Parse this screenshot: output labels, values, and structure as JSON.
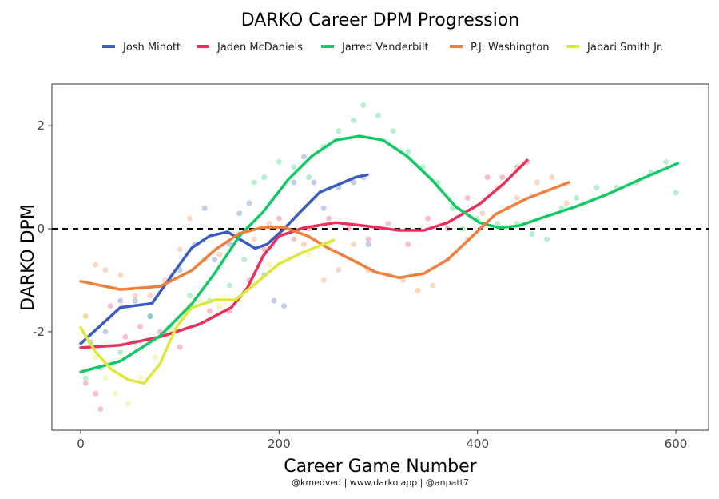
{
  "chart_data": {
    "type": "line",
    "title": "DARKO Career DPM Progression",
    "xlabel": "Career Game Number",
    "ylabel": "DARKO DPM",
    "caption": "@kmedved | www.darko.app | @anpatt7",
    "xlim": [
      -29,
      633
    ],
    "ylim": [
      -3.91,
      2.81
    ],
    "xticks": [
      0,
      200,
      400,
      600
    ],
    "yticks": [
      -2,
      0,
      2
    ],
    "reference_line": {
      "y": 0,
      "style": "dashed"
    },
    "legend_position": "top",
    "grid": false,
    "series": [
      {
        "name": "Josh Minott",
        "color": "#3b5bbf",
        "smooth": [
          [
            0,
            -2.23
          ],
          [
            40,
            -1.53
          ],
          [
            72,
            -1.45
          ],
          [
            92,
            -0.9
          ],
          [
            112,
            -0.37
          ],
          [
            130,
            -0.14
          ],
          [
            148,
            -0.06
          ],
          [
            160,
            -0.2
          ],
          [
            176,
            -0.38
          ],
          [
            188,
            -0.3
          ],
          [
            205,
            0
          ],
          [
            225,
            0.4
          ],
          [
            241,
            0.71
          ],
          [
            261,
            0.87
          ],
          [
            277,
            1.0
          ],
          [
            289,
            1.05
          ]
        ],
        "points": [
          [
            10,
            -2.2
          ],
          [
            25,
            -2.0
          ],
          [
            40,
            -1.4
          ],
          [
            55,
            -1.4
          ],
          [
            70,
            -1.7
          ],
          [
            90,
            -1.0
          ],
          [
            100,
            -0.8
          ],
          [
            115,
            -0.3
          ],
          [
            125,
            0.4
          ],
          [
            135,
            -0.6
          ],
          [
            150,
            -0.3
          ],
          [
            160,
            0.3
          ],
          [
            170,
            0.5
          ],
          [
            185,
            -0.9
          ],
          [
            195,
            -1.4
          ],
          [
            205,
            -1.5
          ],
          [
            215,
            0.9
          ],
          [
            225,
            1.4
          ],
          [
            235,
            0.9
          ],
          [
            245,
            0.4
          ],
          [
            260,
            0.8
          ],
          [
            275,
            0.9
          ],
          [
            285,
            1.0
          ],
          [
            290,
            -0.3
          ]
        ]
      },
      {
        "name": "Jaden McDaniels",
        "color": "#e8305a",
        "smooth": [
          [
            0,
            -2.31
          ],
          [
            40,
            -2.26
          ],
          [
            80,
            -2.1
          ],
          [
            120,
            -1.85
          ],
          [
            152,
            -1.53
          ],
          [
            168,
            -1.15
          ],
          [
            184,
            -0.53
          ],
          [
            200,
            -0.14
          ],
          [
            225,
            0.02
          ],
          [
            257,
            0.12
          ],
          [
            289,
            0.05
          ],
          [
            321,
            -0.03
          ],
          [
            346,
            -0.03
          ],
          [
            370,
            0.12
          ],
          [
            402,
            0.48
          ],
          [
            426,
            0.87
          ],
          [
            450,
            1.33
          ]
        ],
        "points": [
          [
            5,
            -3.0
          ],
          [
            15,
            -3.2
          ],
          [
            20,
            -3.5
          ],
          [
            30,
            -1.5
          ],
          [
            45,
            -2.1
          ],
          [
            60,
            -1.9
          ],
          [
            80,
            -2.0
          ],
          [
            100,
            -2.3
          ],
          [
            110,
            -1.5
          ],
          [
            130,
            -1.6
          ],
          [
            150,
            -1.6
          ],
          [
            170,
            -1.0
          ],
          [
            185,
            -0.4
          ],
          [
            200,
            0.2
          ],
          [
            215,
            -0.2
          ],
          [
            230,
            0.0
          ],
          [
            250,
            0.2
          ],
          [
            270,
            0.0
          ],
          [
            290,
            -0.2
          ],
          [
            310,
            0.1
          ],
          [
            330,
            -0.3
          ],
          [
            350,
            0.2
          ],
          [
            370,
            0.0
          ],
          [
            390,
            0.6
          ],
          [
            410,
            1.0
          ],
          [
            425,
            1.0
          ],
          [
            440,
            1.2
          ],
          [
            450,
            1.3
          ]
        ]
      },
      {
        "name": "Jarred Vanderbilt",
        "color": "#12c964",
        "smooth": [
          [
            0,
            -2.78
          ],
          [
            40,
            -2.57
          ],
          [
            80,
            -2.08
          ],
          [
            112,
            -1.46
          ],
          [
            136,
            -0.84
          ],
          [
            160,
            -0.14
          ],
          [
            184,
            0.33
          ],
          [
            209,
            0.95
          ],
          [
            233,
            1.41
          ],
          [
            257,
            1.72
          ],
          [
            281,
            1.8
          ],
          [
            305,
            1.72
          ],
          [
            329,
            1.41
          ],
          [
            354,
            0.95
          ],
          [
            378,
            0.43
          ],
          [
            402,
            0.12
          ],
          [
            422,
            0.02
          ],
          [
            442,
            0.06
          ],
          [
            466,
            0.22
          ],
          [
            499,
            0.43
          ],
          [
            531,
            0.67
          ],
          [
            563,
            0.95
          ],
          [
            602,
            1.27
          ]
        ],
        "points": [
          [
            5,
            -2.9
          ],
          [
            20,
            -2.7
          ],
          [
            40,
            -2.4
          ],
          [
            55,
            -2.2
          ],
          [
            70,
            -1.7
          ],
          [
            90,
            -1.9
          ],
          [
            110,
            -1.3
          ],
          [
            130,
            -1.4
          ],
          [
            150,
            -1.1
          ],
          [
            165,
            -0.6
          ],
          [
            175,
            0.9
          ],
          [
            185,
            1.0
          ],
          [
            200,
            1.3
          ],
          [
            215,
            1.2
          ],
          [
            230,
            1.0
          ],
          [
            245,
            1.6
          ],
          [
            260,
            1.9
          ],
          [
            275,
            2.1
          ],
          [
            285,
            2.4
          ],
          [
            300,
            2.2
          ],
          [
            315,
            1.9
          ],
          [
            330,
            1.5
          ],
          [
            345,
            1.2
          ],
          [
            360,
            0.9
          ],
          [
            375,
            0.4
          ],
          [
            385,
            0.0
          ],
          [
            400,
            0.2
          ],
          [
            420,
            0.1
          ],
          [
            440,
            0.1
          ],
          [
            455,
            -0.1
          ],
          [
            470,
            -0.2
          ],
          [
            485,
            0.4
          ],
          [
            500,
            0.6
          ],
          [
            520,
            0.8
          ],
          [
            540,
            0.8
          ],
          [
            560,
            0.9
          ],
          [
            575,
            1.1
          ],
          [
            590,
            1.3
          ],
          [
            600,
            0.7
          ]
        ]
      },
      {
        "name": "P.J. Washington",
        "color": "#ef7f3a",
        "smooth": [
          [
            0,
            -1.02
          ],
          [
            40,
            -1.18
          ],
          [
            80,
            -1.12
          ],
          [
            112,
            -0.81
          ],
          [
            136,
            -0.4
          ],
          [
            160,
            -0.09
          ],
          [
            184,
            0.03
          ],
          [
            205,
            0.03
          ],
          [
            229,
            -0.14
          ],
          [
            249,
            -0.37
          ],
          [
            273,
            -0.6
          ],
          [
            297,
            -0.84
          ],
          [
            321,
            -0.95
          ],
          [
            346,
            -0.87
          ],
          [
            370,
            -0.6
          ],
          [
            394,
            -0.16
          ],
          [
            418,
            0.28
          ],
          [
            450,
            0.59
          ],
          [
            492,
            0.9
          ]
        ],
        "points": [
          [
            5,
            -1.7
          ],
          [
            15,
            -0.7
          ],
          [
            25,
            -0.8
          ],
          [
            40,
            -0.9
          ],
          [
            55,
            -1.3
          ],
          [
            70,
            -1.3
          ],
          [
            85,
            -1.0
          ],
          [
            100,
            -0.4
          ],
          [
            110,
            0.2
          ],
          [
            125,
            -0.6
          ],
          [
            140,
            -0.5
          ],
          [
            160,
            -0.1
          ],
          [
            175,
            -0.2
          ],
          [
            190,
            0.1
          ],
          [
            205,
            0.0
          ],
          [
            225,
            -0.3
          ],
          [
            245,
            -1.0
          ],
          [
            260,
            -0.8
          ],
          [
            275,
            -0.3
          ],
          [
            290,
            -0.8
          ],
          [
            310,
            -0.9
          ],
          [
            325,
            -1.0
          ],
          [
            340,
            -1.2
          ],
          [
            355,
            -1.1
          ],
          [
            370,
            -0.6
          ],
          [
            390,
            -0.2
          ],
          [
            405,
            0.3
          ],
          [
            420,
            0.8
          ],
          [
            440,
            0.6
          ],
          [
            460,
            0.9
          ],
          [
            475,
            1.0
          ],
          [
            490,
            0.5
          ]
        ]
      },
      {
        "name": "Jabari Smith Jr.",
        "color": "#dde83a",
        "smooth": [
          [
            0,
            -1.92
          ],
          [
            15,
            -2.39
          ],
          [
            31,
            -2.73
          ],
          [
            48,
            -2.93
          ],
          [
            64,
            -3.0
          ],
          [
            80,
            -2.62
          ],
          [
            96,
            -1.92
          ],
          [
            112,
            -1.53
          ],
          [
            136,
            -1.38
          ],
          [
            156,
            -1.38
          ],
          [
            176,
            -1.07
          ],
          [
            200,
            -0.68
          ],
          [
            225,
            -0.45
          ],
          [
            255,
            -0.22
          ]
        ],
        "points": [
          [
            5,
            -1.7
          ],
          [
            15,
            -2.5
          ],
          [
            25,
            -2.9
          ],
          [
            35,
            -3.2
          ],
          [
            48,
            -3.4
          ],
          [
            60,
            -2.9
          ],
          [
            75,
            -2.5
          ],
          [
            90,
            -2.0
          ],
          [
            105,
            -1.6
          ],
          [
            120,
            -1.4
          ],
          [
            140,
            -1.5
          ],
          [
            160,
            -1.4
          ],
          [
            175,
            -1.1
          ],
          [
            190,
            -0.7
          ],
          [
            210,
            -0.6
          ],
          [
            230,
            -0.5
          ],
          [
            250,
            -0.3
          ]
        ]
      }
    ]
  }
}
